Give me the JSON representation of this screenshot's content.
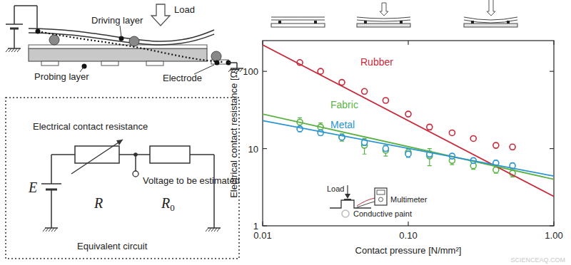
{
  "chart_data": {
    "type": "scatter",
    "x_label": "Contact pressure [N/mm²]",
    "y_label": "Electrical contact resistance [Ω]",
    "log": true,
    "grid": false,
    "xlim": [
      0.01,
      1
    ],
    "ylim": [
      1,
      250
    ],
    "xticks": [
      0.01,
      {
        "value": 0.1,
        "label": "0.10"
      },
      {
        "value": 1,
        "label": "1.00"
      }
    ],
    "yticks": [
      1,
      10,
      100
    ],
    "series": [
      {
        "name": "Rubber",
        "color": "#c8283a",
        "marker": "open-circle",
        "x": [
          0.018,
          0.025,
          0.035,
          0.05,
          0.07,
          0.1,
          0.14,
          0.2,
          0.28,
          0.4,
          0.52
        ],
        "values": [
          130,
          100,
          72,
          55,
          42,
          28,
          19,
          16,
          13.5,
          11,
          10.5
        ],
        "errors": [
          8,
          5,
          4,
          3,
          2.5,
          2,
          1.5,
          1,
          0.8,
          0.8,
          0.8
        ]
      },
      {
        "name": "Fabric",
        "color": "#5cb244",
        "marker": "open-circle",
        "x": [
          0.018,
          0.025,
          0.035,
          0.05,
          0.07,
          0.1,
          0.14,
          0.2,
          0.28,
          0.4,
          0.52
        ],
        "values": [
          22,
          19,
          14,
          11,
          9.5,
          9,
          8,
          7,
          6,
          5.3,
          4.8
        ],
        "errors": [
          3,
          2.5,
          1.5,
          2.5,
          1.5,
          1,
          2,
          0.8,
          0.6,
          0.5,
          0.5
        ]
      },
      {
        "name": "Metal",
        "color": "#2a94d0",
        "marker": "open-circle",
        "x": [
          0.018,
          0.025,
          0.035,
          0.05,
          0.07,
          0.1,
          0.14,
          0.2,
          0.28,
          0.4,
          0.52
        ],
        "values": [
          18,
          16,
          14,
          12,
          10,
          8.5,
          8.5,
          8,
          7,
          6.5,
          6
        ],
        "errors": [
          1.5,
          1.2,
          1,
          1,
          0.8,
          0.8,
          0.8,
          0.6,
          0.5,
          0.5,
          0.5
        ]
      },
      {
        "type": "line",
        "color": "#c8283a",
        "line_style": "solid",
        "x": [
          0.01,
          1
        ],
        "values": [
          220,
          2.4
        ]
      },
      {
        "type": "line",
        "color": "#5cb244",
        "line_style": "solid",
        "x": [
          0.01,
          1
        ],
        "values": [
          28,
          4
        ]
      },
      {
        "type": "line",
        "color": "#2a94d0",
        "line_style": "solid",
        "x": [
          0.01,
          1
        ],
        "values": [
          23,
          4.4
        ]
      }
    ],
    "inset": {
      "load": "Load",
      "meter": "Multimeter",
      "paint": "Conductive paint"
    }
  },
  "diagram": {
    "sensor": {
      "driving_layer": "Driving layer",
      "load": "Load",
      "probing_layer": "Probing layer",
      "electrode": "Electrode"
    },
    "circuit": {
      "contact_resistance": "Electrical contact resistance",
      "variable_resistor": "R",
      "voltage": "Voltage to be estimated",
      "fixed_resistor": {
        "symbol": "R",
        "subscript": "0"
      },
      "source": "E",
      "caption": "Equivalent circuit"
    }
  },
  "watermark": "SCIENCEAQ.COM"
}
